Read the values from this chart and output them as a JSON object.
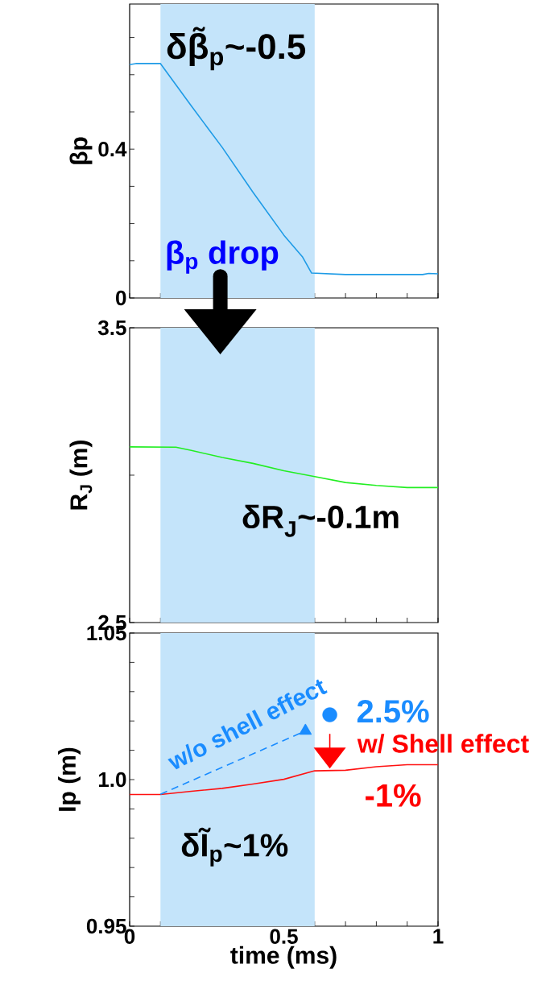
{
  "chart_data": [
    {
      "type": "line",
      "ylabel": "βp",
      "xlim": [
        0,
        1
      ],
      "ylim": [
        0,
        0.79
      ],
      "xticks": [
        0,
        0.1,
        0.2,
        0.3,
        0.4,
        0.5,
        0.6,
        0.7,
        0.8,
        0.9,
        1
      ],
      "yticks": [
        0,
        {
          "value": 0.1,
          "label": null
        },
        {
          "value": 0.2,
          "label": null
        },
        {
          "value": 0.3,
          "label": null
        },
        0.4,
        {
          "value": 0.5,
          "label": null
        },
        {
          "value": 0.6,
          "label": null
        },
        {
          "value": 0.7,
          "label": null
        }
      ],
      "tick_labels": "y",
      "bands": [
        {
          "axis": "x",
          "from": 0.1,
          "to": 0.6,
          "color": "#c4e4fa"
        }
      ],
      "x": [
        0,
        0.02,
        0.1,
        0.15,
        0.2,
        0.3,
        0.4,
        0.5,
        0.56,
        0.59,
        0.7,
        0.8,
        0.9,
        0.95,
        0.97,
        1.0
      ],
      "series": [
        {
          "color": "#1e9be6",
          "values": [
            0.627,
            0.63,
            0.63,
            0.573,
            0.516,
            0.405,
            0.284,
            0.169,
            0.111,
            0.067,
            0.063,
            0.063,
            0.063,
            0.063,
            0.066,
            0.065
          ]
        }
      ],
      "annotations": [
        "δβ̃$_{p}$~-0.5",
        "β$_{p}$ drop"
      ]
    },
    {
      "type": "line",
      "ylabel": "R$_{J}$ (m)",
      "xlim": [
        0,
        1
      ],
      "ylim": [
        2.5,
        3.5
      ],
      "xticks": [
        0,
        0.1,
        0.2,
        0.3,
        0.4,
        0.5,
        0.6,
        0.7,
        0.8,
        0.9,
        1
      ],
      "yticks": [
        2.5,
        {
          "value": 3.0,
          "label": null
        },
        3.5
      ],
      "tick_labels": "y",
      "bands": [
        {
          "axis": "x",
          "from": 0.1,
          "to": 0.6,
          "color": "#c4e4fa"
        }
      ],
      "x": [
        0,
        0.15,
        0.2,
        0.3,
        0.4,
        0.5,
        0.6,
        0.7,
        0.8,
        0.9,
        1.0
      ],
      "series": [
        {
          "color": "#22ee22",
          "values": [
            3.096,
            3.095,
            3.084,
            3.06,
            3.04,
            3.015,
            2.995,
            2.975,
            2.965,
            2.958,
            2.958
          ]
        }
      ],
      "annotations": [
        "δR$_{J}$~-0.1m"
      ]
    },
    {
      "type": "line",
      "xlabel": "time (ms)",
      "ylabel": "Ip (m)",
      "xlim": [
        0,
        1
      ],
      "ylim": [
        0.95,
        1.05
      ],
      "xticks": [
        0,
        {
          "value": 0.1,
          "label": null
        },
        {
          "value": 0.2,
          "label": null
        },
        {
          "value": 0.3,
          "label": null
        },
        {
          "value": 0.4,
          "label": null
        },
        0.5,
        {
          "value": 0.6,
          "label": null
        },
        {
          "value": 0.7,
          "label": null
        },
        {
          "value": 0.8,
          "label": null
        },
        {
          "value": 0.9,
          "label": null
        },
        1
      ],
      "yticks": [
        0.95,
        {
          "value": 0.96,
          "label": null
        },
        {
          "value": 0.97,
          "label": null
        },
        {
          "value": 0.98,
          "label": null
        },
        {
          "value": 0.99,
          "label": null
        },
        {
          "value": 1.0,
          "label": "1.0"
        },
        {
          "value": 1.01,
          "label": null
        },
        {
          "value": 1.02,
          "label": null
        },
        {
          "value": 1.03,
          "label": null
        },
        {
          "value": 1.04,
          "label": null
        },
        1.05
      ],
      "bands": [
        {
          "axis": "x",
          "from": 0.1,
          "to": 0.6,
          "color": "#c4e4fa"
        }
      ],
      "x": [
        0,
        0.1,
        0.2,
        0.3,
        0.4,
        0.5,
        0.6,
        0.7,
        0.8,
        0.9,
        1.0
      ],
      "series": [
        {
          "color": "#ff1111",
          "values": [
            0.9949,
            0.9949,
            0.996,
            0.997,
            0.9985,
            1.0001,
            1.003,
            1.0032,
            1.0044,
            1.0051,
            1.0051
          ]
        },
        {
          "color": "#1a8cff",
          "x": [
            0.1,
            0.57
          ],
          "values": [
            0.995,
            1.0166
          ],
          "line_style": "dashed",
          "marker": "triangle"
        },
        {
          "type": "scatter",
          "color": "#1a8cff",
          "x": [
            0.649
          ],
          "values": [
            1.0221
          ],
          "marker": "circle"
        }
      ],
      "annotations": [
        "w/o shell effect",
        "2.5%",
        "w/ Shell effect",
        "-1%",
        "δĨ$_{p}$~1%"
      ]
    }
  ]
}
